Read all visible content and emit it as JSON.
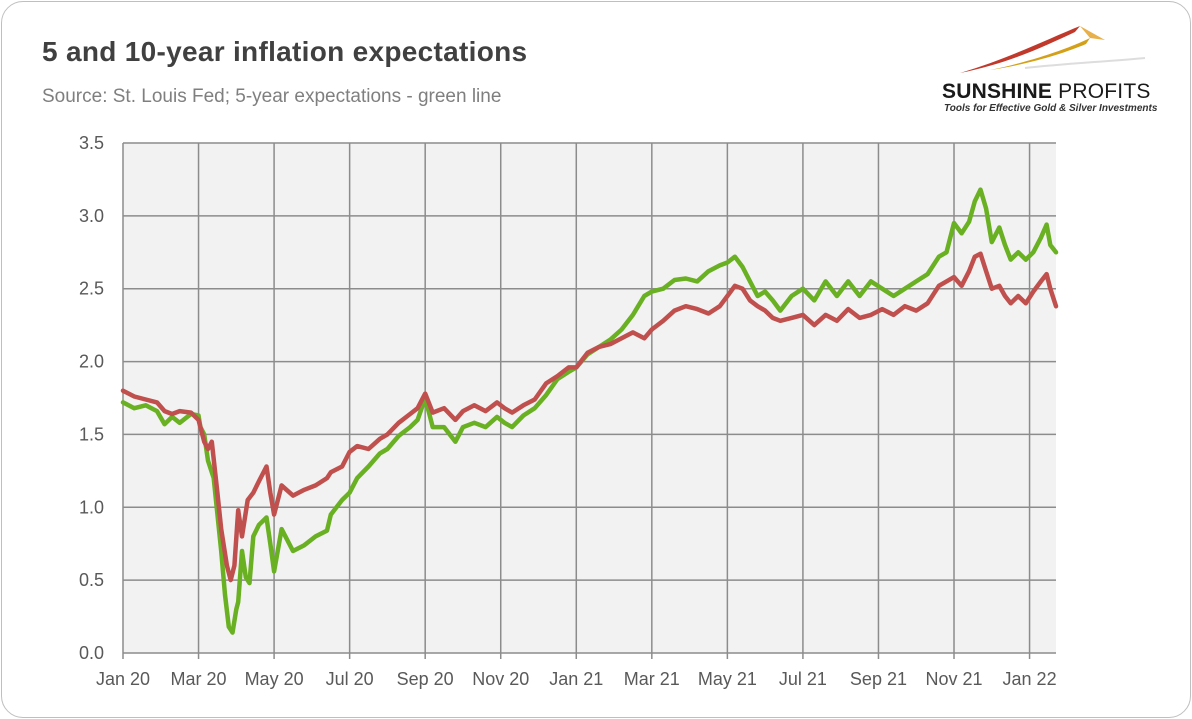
{
  "header": {
    "title": "5 and 10-year inflation expectations",
    "subtitle": "Source: St. Louis Fed; 5-year expectations - green line"
  },
  "logo": {
    "name_bold": "SUNSHINE",
    "name_light": " PROFITS",
    "tagline": "Tools for Effective Gold & Silver Investments"
  },
  "chart_data": {
    "type": "line",
    "x_unit": "month index (0 = Jan 2020)",
    "xlim": [
      0,
      24.7
    ],
    "ylim": [
      0,
      3.5
    ],
    "grid": true,
    "legend": "none",
    "x_ticks": [
      {
        "x": 0,
        "label": "Jan 20"
      },
      {
        "x": 2,
        "label": "Mar 20"
      },
      {
        "x": 4,
        "label": "May 20"
      },
      {
        "x": 6,
        "label": "Jul 20"
      },
      {
        "x": 8,
        "label": "Sep 20"
      },
      {
        "x": 10,
        "label": "Nov 20"
      },
      {
        "x": 12,
        "label": "Jan 21"
      },
      {
        "x": 14,
        "label": "Mar 21"
      },
      {
        "x": 16,
        "label": "May 21"
      },
      {
        "x": 18,
        "label": "Jul 21"
      },
      {
        "x": 20,
        "label": "Sep 21"
      },
      {
        "x": 22,
        "label": "Nov 21"
      },
      {
        "x": 24,
        "label": "Jan 22"
      }
    ],
    "y_ticks": [
      {
        "y": 0.0,
        "label": "0.0"
      },
      {
        "y": 0.5,
        "label": "0.5"
      },
      {
        "y": 1.0,
        "label": "1.0"
      },
      {
        "y": 1.5,
        "label": "1.5"
      },
      {
        "y": 2.0,
        "label": "2.0"
      },
      {
        "y": 2.5,
        "label": "2.5"
      },
      {
        "y": 3.0,
        "label": "3.0"
      },
      {
        "y": 3.5,
        "label": "3.5"
      }
    ],
    "series": [
      {
        "color": "#6ab023",
        "points": [
          [
            0.0,
            1.72
          ],
          [
            0.3,
            1.68
          ],
          [
            0.6,
            1.7
          ],
          [
            0.9,
            1.66
          ],
          [
            1.1,
            1.57
          ],
          [
            1.3,
            1.62
          ],
          [
            1.5,
            1.58
          ],
          [
            1.8,
            1.64
          ],
          [
            2.0,
            1.63
          ],
          [
            2.05,
            1.55
          ],
          [
            2.15,
            1.5
          ],
          [
            2.25,
            1.32
          ],
          [
            2.4,
            1.2
          ],
          [
            2.6,
            0.7
          ],
          [
            2.7,
            0.4
          ],
          [
            2.8,
            0.18
          ],
          [
            2.9,
            0.14
          ],
          [
            3.0,
            0.3
          ],
          [
            3.05,
            0.35
          ],
          [
            3.15,
            0.7
          ],
          [
            3.25,
            0.52
          ],
          [
            3.35,
            0.48
          ],
          [
            3.45,
            0.8
          ],
          [
            3.6,
            0.88
          ],
          [
            3.8,
            0.93
          ],
          [
            3.9,
            0.75
          ],
          [
            4.0,
            0.56
          ],
          [
            4.2,
            0.85
          ],
          [
            4.5,
            0.7
          ],
          [
            4.8,
            0.74
          ],
          [
            5.1,
            0.8
          ],
          [
            5.4,
            0.84
          ],
          [
            5.5,
            0.95
          ],
          [
            5.8,
            1.05
          ],
          [
            6.0,
            1.1
          ],
          [
            6.2,
            1.2
          ],
          [
            6.5,
            1.28
          ],
          [
            6.8,
            1.37
          ],
          [
            7.0,
            1.4
          ],
          [
            7.3,
            1.49
          ],
          [
            7.6,
            1.55
          ],
          [
            7.8,
            1.6
          ],
          [
            8.0,
            1.75
          ],
          [
            8.2,
            1.55
          ],
          [
            8.5,
            1.55
          ],
          [
            8.8,
            1.45
          ],
          [
            9.0,
            1.55
          ],
          [
            9.3,
            1.58
          ],
          [
            9.6,
            1.55
          ],
          [
            9.9,
            1.62
          ],
          [
            10.1,
            1.58
          ],
          [
            10.3,
            1.55
          ],
          [
            10.6,
            1.63
          ],
          [
            10.9,
            1.68
          ],
          [
            11.2,
            1.77
          ],
          [
            11.5,
            1.88
          ],
          [
            11.8,
            1.93
          ],
          [
            12.0,
            1.96
          ],
          [
            12.3,
            2.05
          ],
          [
            12.6,
            2.1
          ],
          [
            12.9,
            2.15
          ],
          [
            13.2,
            2.22
          ],
          [
            13.5,
            2.32
          ],
          [
            13.8,
            2.45
          ],
          [
            14.0,
            2.48
          ],
          [
            14.3,
            2.5
          ],
          [
            14.6,
            2.56
          ],
          [
            14.9,
            2.57
          ],
          [
            15.2,
            2.55
          ],
          [
            15.5,
            2.62
          ],
          [
            15.8,
            2.66
          ],
          [
            16.0,
            2.68
          ],
          [
            16.2,
            2.72
          ],
          [
            16.4,
            2.65
          ],
          [
            16.6,
            2.55
          ],
          [
            16.8,
            2.45
          ],
          [
            17.0,
            2.48
          ],
          [
            17.2,
            2.42
          ],
          [
            17.4,
            2.35
          ],
          [
            17.7,
            2.45
          ],
          [
            18.0,
            2.5
          ],
          [
            18.3,
            2.42
          ],
          [
            18.6,
            2.55
          ],
          [
            18.9,
            2.45
          ],
          [
            19.2,
            2.55
          ],
          [
            19.5,
            2.45
          ],
          [
            19.8,
            2.55
          ],
          [
            20.1,
            2.5
          ],
          [
            20.4,
            2.45
          ],
          [
            20.7,
            2.5
          ],
          [
            21.0,
            2.55
          ],
          [
            21.3,
            2.6
          ],
          [
            21.6,
            2.72
          ],
          [
            21.8,
            2.75
          ],
          [
            22.0,
            2.95
          ],
          [
            22.2,
            2.88
          ],
          [
            22.4,
            2.96
          ],
          [
            22.55,
            3.1
          ],
          [
            22.7,
            3.18
          ],
          [
            22.85,
            3.05
          ],
          [
            23.0,
            2.82
          ],
          [
            23.2,
            2.92
          ],
          [
            23.35,
            2.8
          ],
          [
            23.5,
            2.7
          ],
          [
            23.7,
            2.75
          ],
          [
            23.9,
            2.7
          ],
          [
            24.1,
            2.75
          ],
          [
            24.3,
            2.85
          ],
          [
            24.45,
            2.94
          ],
          [
            24.55,
            2.8
          ],
          [
            24.7,
            2.75
          ]
        ]
      },
      {
        "color": "#c0504d",
        "points": [
          [
            0.0,
            1.8
          ],
          [
            0.3,
            1.76
          ],
          [
            0.6,
            1.74
          ],
          [
            0.9,
            1.72
          ],
          [
            1.1,
            1.66
          ],
          [
            1.3,
            1.64
          ],
          [
            1.5,
            1.66
          ],
          [
            1.8,
            1.65
          ],
          [
            2.0,
            1.6
          ],
          [
            2.05,
            1.55
          ],
          [
            2.15,
            1.45
          ],
          [
            2.25,
            1.4
          ],
          [
            2.35,
            1.45
          ],
          [
            2.5,
            1.1
          ],
          [
            2.6,
            0.85
          ],
          [
            2.75,
            0.6
          ],
          [
            2.85,
            0.5
          ],
          [
            2.95,
            0.6
          ],
          [
            3.05,
            0.98
          ],
          [
            3.15,
            0.8
          ],
          [
            3.3,
            1.05
          ],
          [
            3.45,
            1.1
          ],
          [
            3.6,
            1.18
          ],
          [
            3.8,
            1.28
          ],
          [
            3.9,
            1.1
          ],
          [
            4.0,
            0.95
          ],
          [
            4.2,
            1.15
          ],
          [
            4.5,
            1.08
          ],
          [
            4.8,
            1.12
          ],
          [
            5.1,
            1.15
          ],
          [
            5.4,
            1.2
          ],
          [
            5.5,
            1.24
          ],
          [
            5.8,
            1.28
          ],
          [
            6.0,
            1.38
          ],
          [
            6.2,
            1.42
          ],
          [
            6.5,
            1.4
          ],
          [
            6.8,
            1.47
          ],
          [
            7.0,
            1.5
          ],
          [
            7.3,
            1.58
          ],
          [
            7.6,
            1.64
          ],
          [
            7.8,
            1.68
          ],
          [
            8.0,
            1.78
          ],
          [
            8.2,
            1.65
          ],
          [
            8.5,
            1.68
          ],
          [
            8.8,
            1.6
          ],
          [
            9.0,
            1.66
          ],
          [
            9.3,
            1.7
          ],
          [
            9.6,
            1.66
          ],
          [
            9.9,
            1.72
          ],
          [
            10.1,
            1.68
          ],
          [
            10.3,
            1.65
          ],
          [
            10.6,
            1.7
          ],
          [
            10.9,
            1.74
          ],
          [
            11.2,
            1.85
          ],
          [
            11.5,
            1.9
          ],
          [
            11.8,
            1.96
          ],
          [
            12.0,
            1.96
          ],
          [
            12.3,
            2.06
          ],
          [
            12.6,
            2.1
          ],
          [
            12.9,
            2.12
          ],
          [
            13.2,
            2.16
          ],
          [
            13.5,
            2.2
          ],
          [
            13.8,
            2.16
          ],
          [
            14.0,
            2.22
          ],
          [
            14.3,
            2.28
          ],
          [
            14.6,
            2.35
          ],
          [
            14.9,
            2.38
          ],
          [
            15.2,
            2.36
          ],
          [
            15.5,
            2.33
          ],
          [
            15.8,
            2.38
          ],
          [
            16.0,
            2.45
          ],
          [
            16.2,
            2.52
          ],
          [
            16.4,
            2.5
          ],
          [
            16.6,
            2.42
          ],
          [
            16.8,
            2.38
          ],
          [
            17.0,
            2.35
          ],
          [
            17.2,
            2.3
          ],
          [
            17.4,
            2.28
          ],
          [
            17.7,
            2.3
          ],
          [
            18.0,
            2.32
          ],
          [
            18.3,
            2.25
          ],
          [
            18.6,
            2.32
          ],
          [
            18.9,
            2.28
          ],
          [
            19.2,
            2.36
          ],
          [
            19.5,
            2.3
          ],
          [
            19.8,
            2.32
          ],
          [
            20.1,
            2.36
          ],
          [
            20.4,
            2.32
          ],
          [
            20.7,
            2.38
          ],
          [
            21.0,
            2.35
          ],
          [
            21.3,
            2.4
          ],
          [
            21.6,
            2.52
          ],
          [
            21.8,
            2.55
          ],
          [
            22.0,
            2.58
          ],
          [
            22.2,
            2.52
          ],
          [
            22.4,
            2.62
          ],
          [
            22.55,
            2.72
          ],
          [
            22.7,
            2.74
          ],
          [
            22.85,
            2.62
          ],
          [
            23.0,
            2.5
          ],
          [
            23.2,
            2.52
          ],
          [
            23.35,
            2.45
          ],
          [
            23.5,
            2.4
          ],
          [
            23.7,
            2.45
          ],
          [
            23.9,
            2.4
          ],
          [
            24.1,
            2.48
          ],
          [
            24.3,
            2.55
          ],
          [
            24.45,
            2.6
          ],
          [
            24.55,
            2.5
          ],
          [
            24.7,
            2.38
          ]
        ]
      }
    ]
  }
}
